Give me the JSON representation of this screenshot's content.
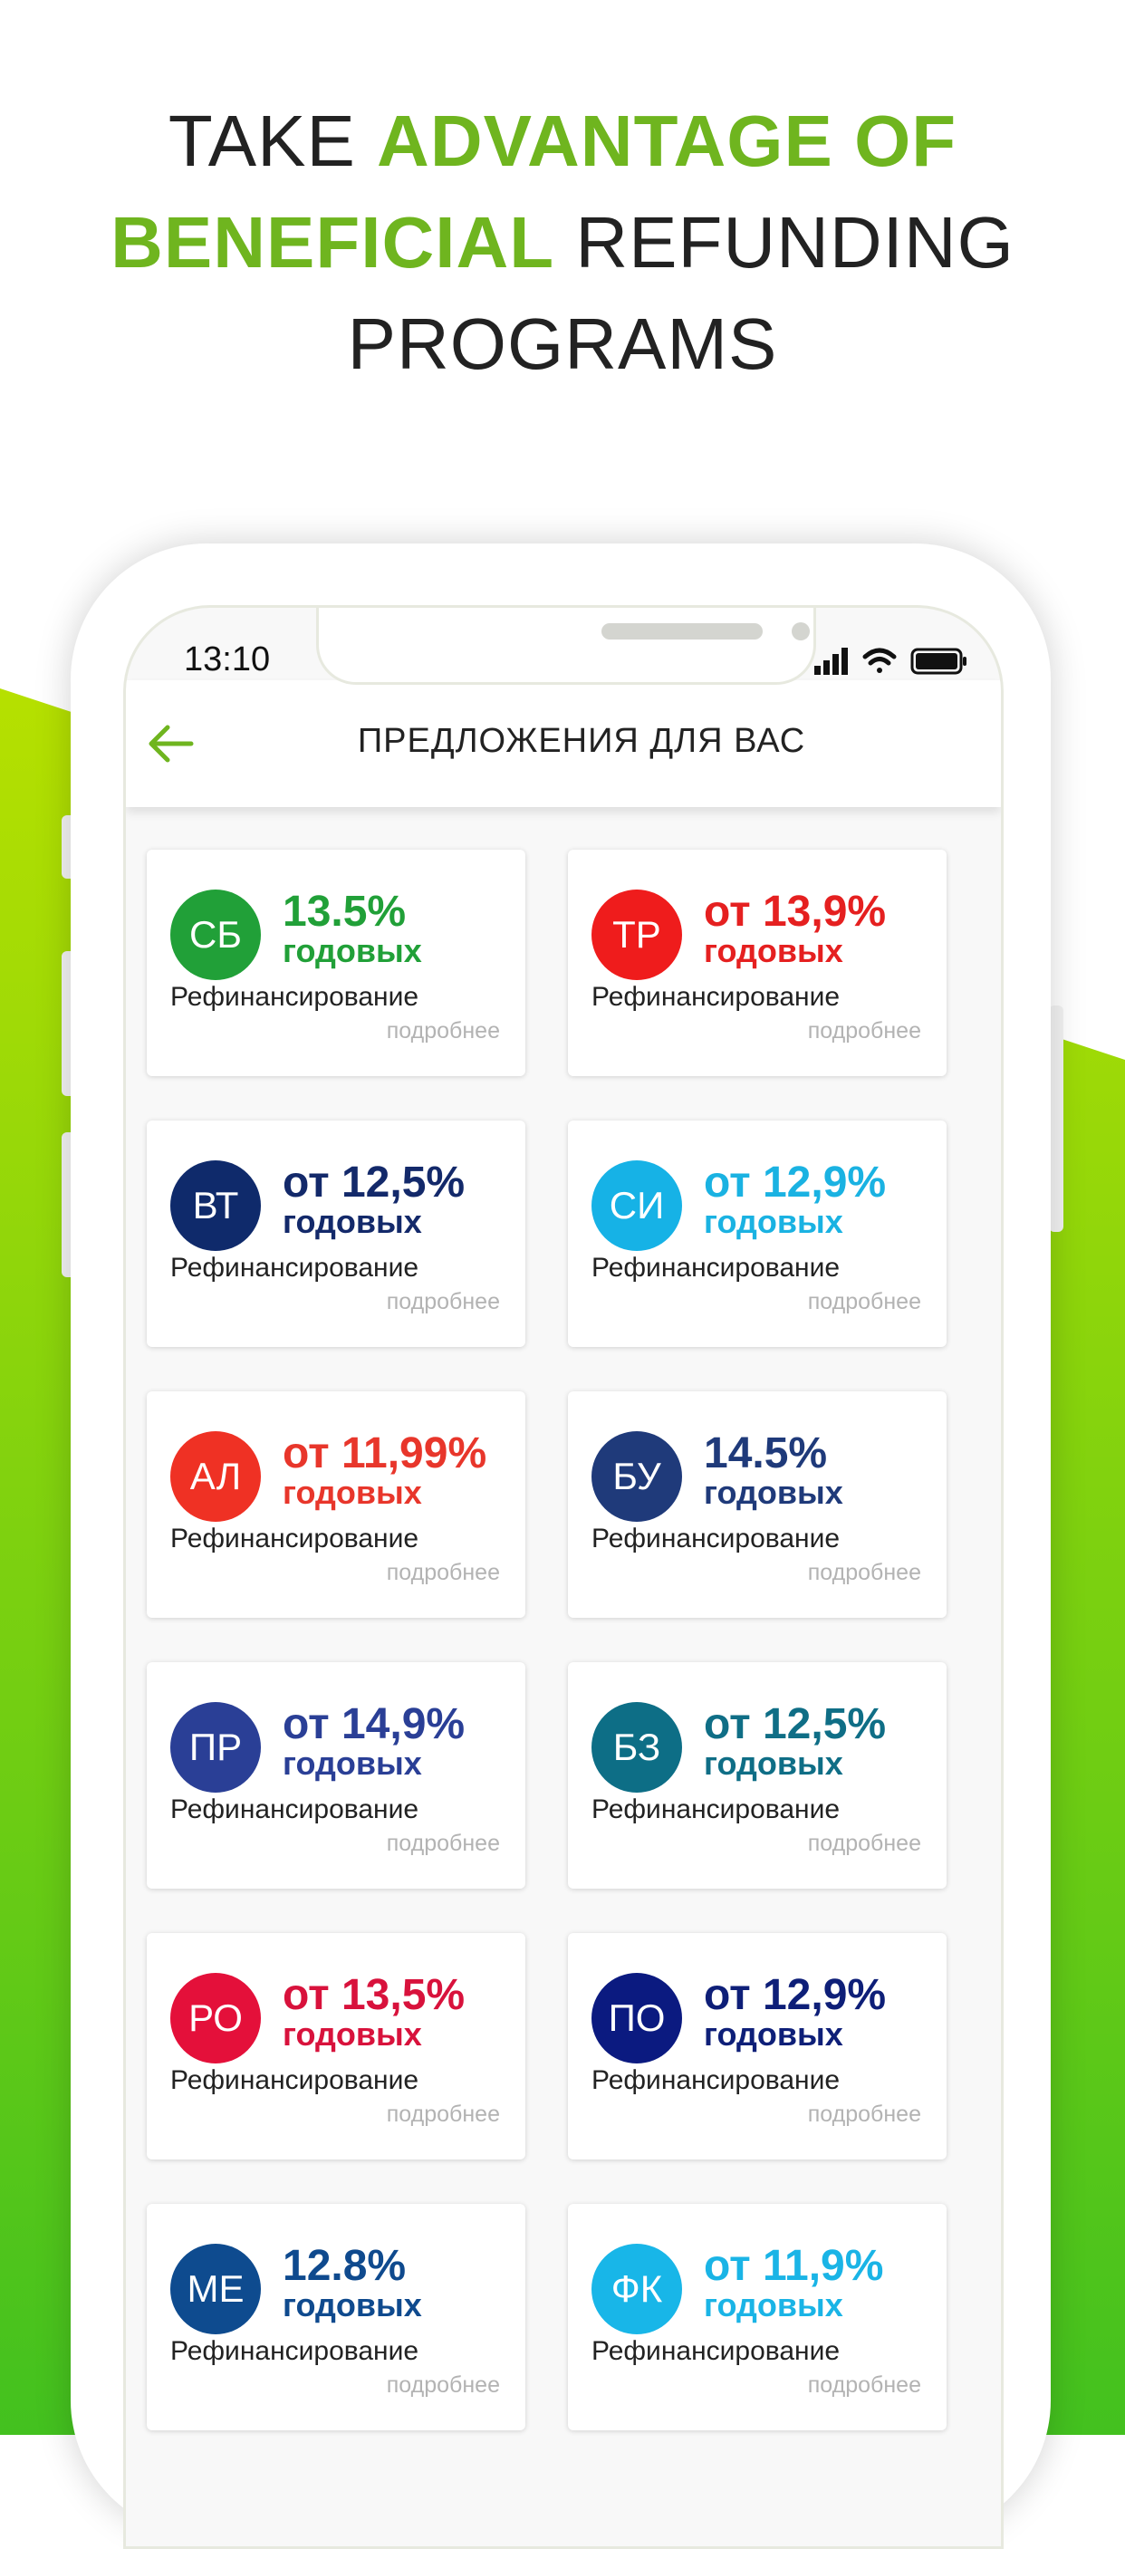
{
  "headline": {
    "part1": "TAKE ",
    "part2": "ADVANTAGE OF",
    "part3": "BENEFICIAL",
    "part4": " REFUNDING",
    "part5": "PROGRAMS"
  },
  "colors": {
    "accent_green": "#6fb51f",
    "background_gradient": [
      "#b6e000",
      "#43c11f"
    ]
  },
  "status_bar": {
    "time": "13:10",
    "icons": [
      "signal-icon",
      "wifi-icon",
      "battery-icon"
    ]
  },
  "header": {
    "back_icon": "arrow-left-icon",
    "title": "ПРЕДЛОЖЕНИЯ ДЛЯ ВАС"
  },
  "offers": [
    {
      "logo": "СБ",
      "rate": "13.5%",
      "period": "годовых",
      "type": "Рефинансирование",
      "more": "подробнее",
      "logo_color": "#21a038",
      "text_color": "#21a038"
    },
    {
      "logo": "ТР",
      "rate": "от 13,9%",
      "period": "годовых",
      "type": "Рефинансирование",
      "more": "подробнее",
      "logo_color": "#ef1c1c",
      "text_color": "#e52020"
    },
    {
      "logo": "ВТ",
      "rate": "от 12,5%",
      "period": "годовых",
      "type": "Рефинансирование",
      "more": "подробнее",
      "logo_color": "#0f2a6b",
      "text_color": "#13296a"
    },
    {
      "logo": "СИ",
      "rate": "от 12,9%",
      "period": "годовых",
      "type": "Рефинансирование",
      "more": "подробнее",
      "logo_color": "#16b2e6",
      "text_color": "#1ab2e2"
    },
    {
      "logo": "АЛ",
      "rate": "от 11,99%",
      "period": "годовых",
      "type": "Рефинансирование",
      "more": "подробнее",
      "logo_color": "#ef3124",
      "text_color": "#e8362b"
    },
    {
      "logo": "БУ",
      "rate": "14.5%",
      "period": "годовых",
      "type": "Рефинансирование",
      "more": "подробнее",
      "logo_color": "#1f3a7a",
      "text_color": "#1f3a7a"
    },
    {
      "logo": "ПР",
      "rate": "от 14,9%",
      "period": "годовых",
      "type": "Рефинансирование",
      "more": "подробнее",
      "logo_color": "#2a3f96",
      "text_color": "#2a3f96"
    },
    {
      "logo": "БЗ",
      "rate": "от 12,5%",
      "period": "годовых",
      "type": "Рефинансирование",
      "more": "подробнее",
      "logo_color": "#0d6e86",
      "text_color": "#0f6e86"
    },
    {
      "logo": "РО",
      "rate": "от 13,5%",
      "period": "годовых",
      "type": "Рефинансирование",
      "more": "подробнее",
      "logo_color": "#e4103a",
      "text_color": "#d8123c"
    },
    {
      "logo": "ПО",
      "rate": "от 12,9%",
      "period": "годовых",
      "type": "Рефинансирование",
      "more": "подробнее",
      "logo_color": "#0b1a80",
      "text_color": "#0e1f78"
    },
    {
      "logo": "МЕ",
      "rate": "12.8%",
      "period": "годовых",
      "type": "Рефинансирование",
      "more": "подробнее",
      "logo_color": "#0e4b8f",
      "text_color": "#0f4a8e"
    },
    {
      "logo": "ФК",
      "rate": "от 11,9%",
      "period": "годовых",
      "type": "Рефинансирование",
      "more": "подробнее",
      "logo_color": "#18b6e8",
      "text_color": "#1ab4e6"
    }
  ]
}
